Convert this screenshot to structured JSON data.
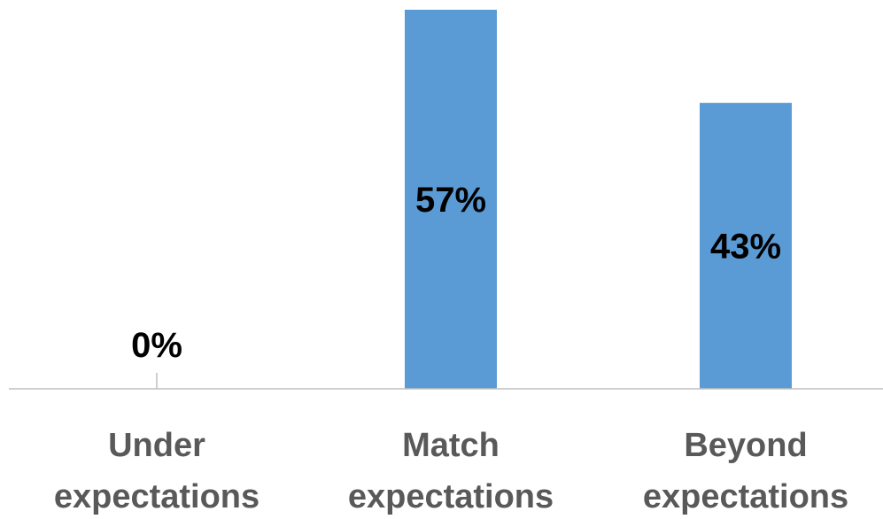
{
  "chart_data": {
    "type": "bar",
    "categories": [
      [
        "Under",
        "expectations"
      ],
      [
        "Match",
        "expectations"
      ],
      [
        "Beyond",
        "expectations"
      ]
    ],
    "values": [
      0,
      57,
      43
    ],
    "data_labels": [
      "0%",
      "57%",
      "43%"
    ],
    "title": "",
    "xlabel": "",
    "ylabel": "",
    "ylim": [
      0,
      57
    ],
    "grid": false,
    "legend": "none",
    "bar_color": "#5b9bd5",
    "axis_color": "#bfbfbf",
    "label_color": "#000000",
    "category_color": "#595959"
  }
}
